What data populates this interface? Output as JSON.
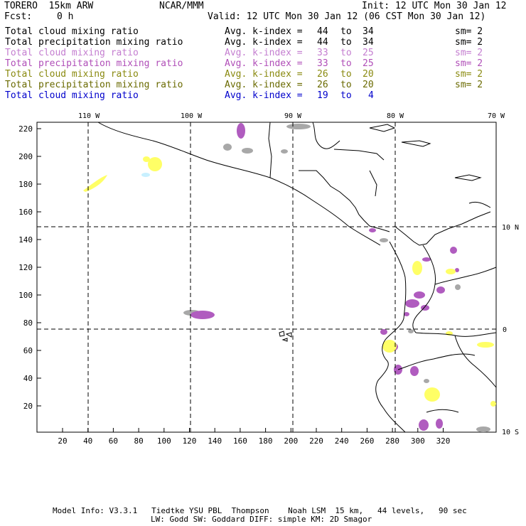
{
  "header": {
    "model": "TORERO  15km ARW",
    "center": "NCAR/MMM",
    "init": "Init: 12 UTC Mon 30 Jan 12",
    "fcst_label": "Fcst:",
    "fcst_value": "0 h",
    "valid": "Valid: 12 UTC Mon 30 Jan 12 (06 CST Mon 30 Jan 12)"
  },
  "legend": [
    {
      "field": "Total cloud mixing ratio",
      "index": "Avg. k-index =",
      "from": "44",
      "to_word": "to",
      "to": "34",
      "sm": "sm= 2",
      "color": "#000000"
    },
    {
      "field": "Total precipitation mixing ratio",
      "index": "Avg. k-index =",
      "from": "44",
      "to_word": "to",
      "to": "34",
      "sm": "sm= 2",
      "color": "#000000"
    },
    {
      "field": "Total cloud mixing ratio",
      "index": "Avg. k-index =",
      "from": "33",
      "to_word": "to",
      "to": "25",
      "sm": "sm= 2",
      "color": "#c47ed0"
    },
    {
      "field": "Total precipitation mixing ratio",
      "index": "Avg. k-index =",
      "from": "33",
      "to_word": "to",
      "to": "25",
      "sm": "sm= 2",
      "color": "#b04eb8"
    },
    {
      "field": "Total cloud mixing ratio",
      "index": "Avg. k-index =",
      "from": "26",
      "to_word": "to",
      "to": "20",
      "sm": "sm= 2",
      "color": "#8a8a10"
    },
    {
      "field": "Total precipitation mixing ratio",
      "index": "Avg. k-index =",
      "from": "26",
      "to_word": "to",
      "to": "20",
      "sm": "sm= 2",
      "color": "#6a6a00"
    },
    {
      "field": "Total cloud mixing ratio",
      "index": "Avg. k-index =",
      "from": "19",
      "to_word": "to",
      "to": "4",
      "sm": "",
      "color": "#0000cc"
    }
  ],
  "map": {
    "lon_labels": [
      "110 W",
      "100 W",
      "90 W",
      "80 W",
      "70 W"
    ],
    "lat_labels": [
      "10 N",
      "0",
      "10 S"
    ],
    "y_ticks": [
      "220",
      "200",
      "180",
      "160",
      "140",
      "120",
      "100",
      "80",
      "60",
      "40",
      "20"
    ],
    "x_ticks": [
      "20",
      "40",
      "60",
      "80",
      "100",
      "120",
      "140",
      "160",
      "180",
      "200",
      "220",
      "240",
      "260",
      "280",
      "300",
      "320"
    ],
    "colors": {
      "gray_cloud": "#a8a8a8",
      "purple_precip": "#b05cbf",
      "yellow_cloud": "#ffff66",
      "light_blue": "#c8f0ff",
      "border": "#000000"
    }
  },
  "footer": {
    "line1": "Model Info: V3.3.1   Tiedtke YSU PBL  Thompson    Noah LSM  15 km,   44 levels,   90 sec",
    "line2": "LW: Godd SW: Goddard DIFF: simple KM: 2D Smagor"
  }
}
